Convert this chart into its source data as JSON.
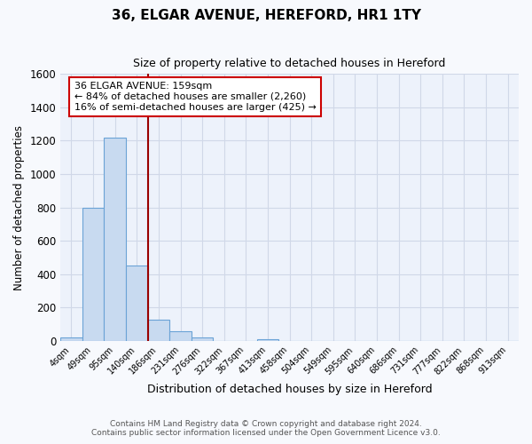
{
  "title": "36, ELGAR AVENUE, HEREFORD, HR1 1TY",
  "subtitle": "Size of property relative to detached houses in Hereford",
  "xlabel": "Distribution of detached houses by size in Hereford",
  "ylabel": "Number of detached properties",
  "categories": [
    "4sqm",
    "49sqm",
    "95sqm",
    "140sqm",
    "186sqm",
    "231sqm",
    "276sqm",
    "322sqm",
    "367sqm",
    "413sqm",
    "458sqm",
    "504sqm",
    "549sqm",
    "595sqm",
    "640sqm",
    "686sqm",
    "731sqm",
    "777sqm",
    "822sqm",
    "868sqm",
    "913sqm"
  ],
  "values": [
    22,
    800,
    1220,
    450,
    125,
    58,
    22,
    0,
    0,
    10,
    0,
    0,
    0,
    0,
    0,
    0,
    0,
    0,
    0,
    0,
    0
  ],
  "bar_color": "#c8daf0",
  "bar_edge_color": "#6ba3d6",
  "property_line_x": 3.5,
  "property_line_color": "#990000",
  "annotation_text": "36 ELGAR AVENUE: 159sqm\n← 84% of detached houses are smaller (2,260)\n16% of semi-detached houses are larger (425) →",
  "annotation_box_color": "white",
  "annotation_box_edge_color": "#cc0000",
  "ylim": [
    0,
    1600
  ],
  "yticks": [
    0,
    200,
    400,
    600,
    800,
    1000,
    1200,
    1400,
    1600
  ],
  "footer_line1": "Contains HM Land Registry data © Crown copyright and database right 2024.",
  "footer_line2": "Contains public sector information licensed under the Open Government Licence v3.0.",
  "background_color": "#f7f9fd",
  "plot_bg_color": "#edf2fb",
  "grid_color": "#d0d8e8"
}
